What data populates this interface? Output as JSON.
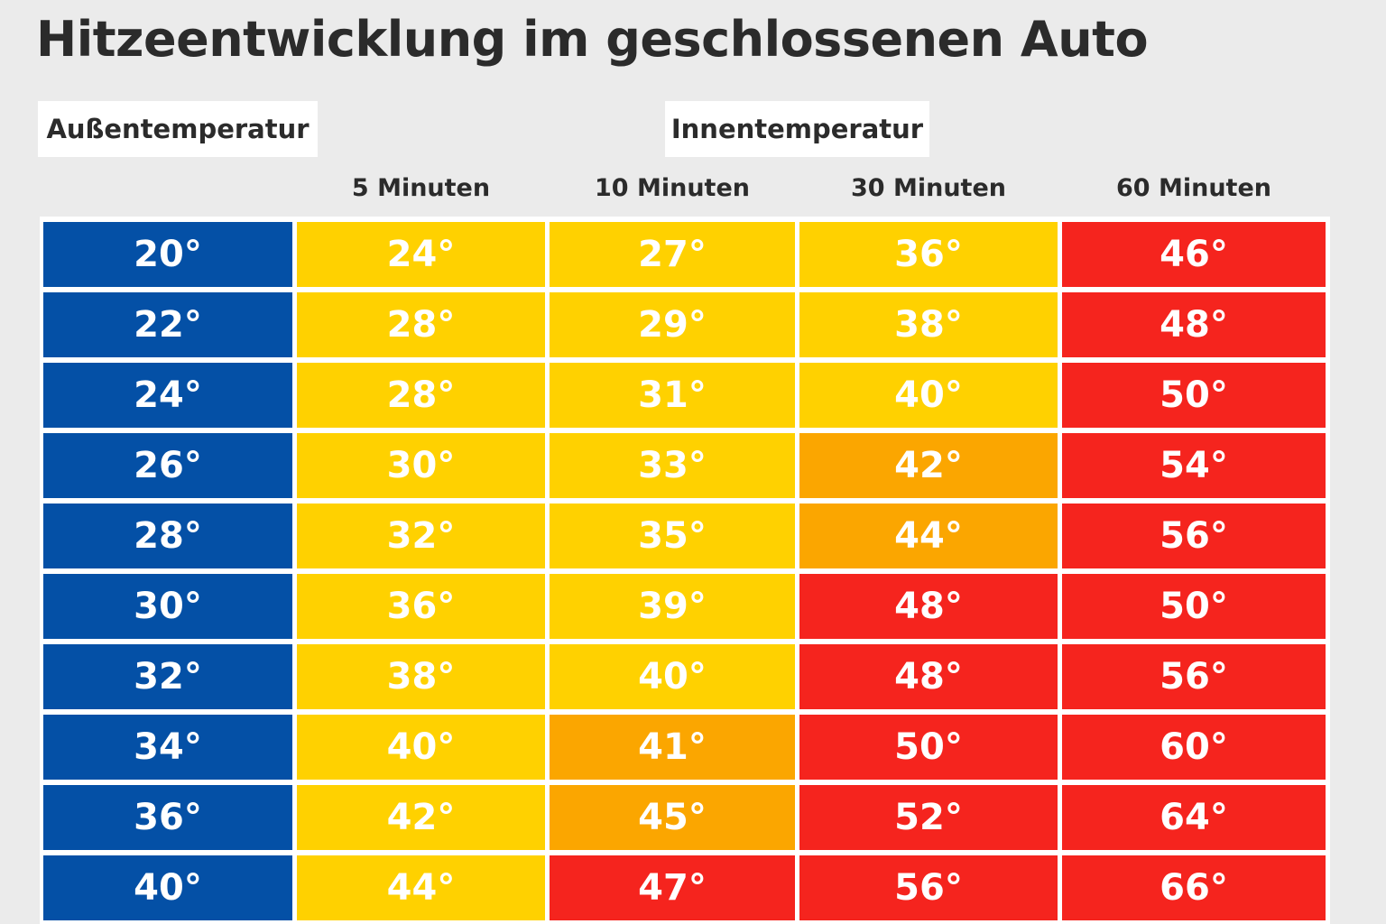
{
  "title": "Hitzeentwicklung im geschlossenen Auto",
  "labels": {
    "outside": "Außentemperatur",
    "inside": "Innentemperatur"
  },
  "colors": {
    "outside": "#0450a6",
    "yellow": "#ffd100",
    "orange": "#fba600",
    "red": "#f5241e"
  },
  "chart_data": {
    "type": "table",
    "title": "Hitzeentwicklung im geschlossenen Auto",
    "row_header": "Außentemperatur",
    "column_group": "Innentemperatur",
    "columns": [
      "5 Minuten",
      "10 Minuten",
      "30 Minuten",
      "60 Minuten"
    ],
    "rows": [
      {
        "outside": "20°",
        "values": [
          "24°",
          "27°",
          "36°",
          "46°"
        ],
        "colors": [
          "yellow",
          "yellow",
          "yellow",
          "red"
        ]
      },
      {
        "outside": "22°",
        "values": [
          "28°",
          "29°",
          "38°",
          "48°"
        ],
        "colors": [
          "yellow",
          "yellow",
          "yellow",
          "red"
        ]
      },
      {
        "outside": "24°",
        "values": [
          "28°",
          "31°",
          "40°",
          "50°"
        ],
        "colors": [
          "yellow",
          "yellow",
          "yellow",
          "red"
        ]
      },
      {
        "outside": "26°",
        "values": [
          "30°",
          "33°",
          "42°",
          "54°"
        ],
        "colors": [
          "yellow",
          "yellow",
          "orange",
          "red"
        ]
      },
      {
        "outside": "28°",
        "values": [
          "32°",
          "35°",
          "44°",
          "56°"
        ],
        "colors": [
          "yellow",
          "yellow",
          "orange",
          "red"
        ]
      },
      {
        "outside": "30°",
        "values": [
          "36°",
          "39°",
          "48°",
          "50°"
        ],
        "colors": [
          "yellow",
          "yellow",
          "red",
          "red"
        ]
      },
      {
        "outside": "32°",
        "values": [
          "38°",
          "40°",
          "48°",
          "56°"
        ],
        "colors": [
          "yellow",
          "yellow",
          "red",
          "red"
        ]
      },
      {
        "outside": "34°",
        "values": [
          "40°",
          "41°",
          "50°",
          "60°"
        ],
        "colors": [
          "yellow",
          "orange",
          "red",
          "red"
        ]
      },
      {
        "outside": "36°",
        "values": [
          "42°",
          "45°",
          "52°",
          "64°"
        ],
        "colors": [
          "yellow",
          "orange",
          "red",
          "red"
        ]
      },
      {
        "outside": "40°",
        "values": [
          "44°",
          "47°",
          "56°",
          "66°"
        ],
        "colors": [
          "yellow",
          "red",
          "red",
          "red"
        ]
      }
    ]
  }
}
